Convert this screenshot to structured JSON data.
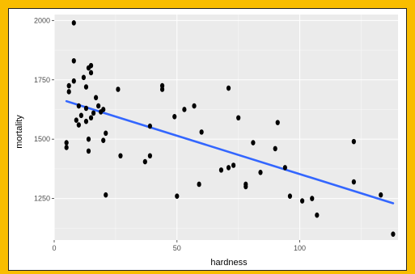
{
  "colors": {
    "frame": "#f9bd00",
    "panel": "#ebebeb",
    "grid_major": "#ffffff",
    "point": "#000000",
    "fit_line": "#3366ff"
  },
  "chart_data": {
    "type": "scatter",
    "title": "",
    "xlabel": "hardness",
    "ylabel": "mortality",
    "xlim": [
      0,
      140
    ],
    "ylim": [
      1075,
      2025
    ],
    "x_ticks": [
      0,
      50,
      100
    ],
    "y_ticks": [
      1250,
      1500,
      1750,
      2000
    ],
    "x_tick_labels": [
      "0",
      "50",
      "100"
    ],
    "y_tick_labels": [
      "1250",
      "1500",
      "1750",
      "2000"
    ],
    "grid": true,
    "legend": "none",
    "points": [
      {
        "x": 5,
        "y": 1465
      },
      {
        "x": 5,
        "y": 1485
      },
      {
        "x": 6,
        "y": 1700
      },
      {
        "x": 6,
        "y": 1725
      },
      {
        "x": 8,
        "y": 1990
      },
      {
        "x": 8,
        "y": 1830
      },
      {
        "x": 8,
        "y": 1745
      },
      {
        "x": 9,
        "y": 1580
      },
      {
        "x": 10,
        "y": 1640
      },
      {
        "x": 10,
        "y": 1560
      },
      {
        "x": 11,
        "y": 1600
      },
      {
        "x": 12,
        "y": 1760
      },
      {
        "x": 13,
        "y": 1720
      },
      {
        "x": 13,
        "y": 1630
      },
      {
        "x": 13,
        "y": 1575
      },
      {
        "x": 14,
        "y": 1800
      },
      {
        "x": 14,
        "y": 1500
      },
      {
        "x": 14,
        "y": 1450
      },
      {
        "x": 15,
        "y": 1810
      },
      {
        "x": 15,
        "y": 1780
      },
      {
        "x": 15,
        "y": 1590
      },
      {
        "x": 16,
        "y": 1610
      },
      {
        "x": 17,
        "y": 1675
      },
      {
        "x": 18,
        "y": 1640
      },
      {
        "x": 19,
        "y": 1615
      },
      {
        "x": 20,
        "y": 1625
      },
      {
        "x": 20,
        "y": 1495
      },
      {
        "x": 21,
        "y": 1525
      },
      {
        "x": 21,
        "y": 1265
      },
      {
        "x": 26,
        "y": 1710
      },
      {
        "x": 27,
        "y": 1430
      },
      {
        "x": 37,
        "y": 1405
      },
      {
        "x": 39,
        "y": 1430
      },
      {
        "x": 39,
        "y": 1555
      },
      {
        "x": 44,
        "y": 1725
      },
      {
        "x": 44,
        "y": 1710
      },
      {
        "x": 49,
        "y": 1595
      },
      {
        "x": 50,
        "y": 1260
      },
      {
        "x": 53,
        "y": 1625
      },
      {
        "x": 57,
        "y": 1640
      },
      {
        "x": 59,
        "y": 1310
      },
      {
        "x": 60,
        "y": 1530
      },
      {
        "x": 68,
        "y": 1370
      },
      {
        "x": 71,
        "y": 1715
      },
      {
        "x": 71,
        "y": 1380
      },
      {
        "x": 73,
        "y": 1390
      },
      {
        "x": 75,
        "y": 1590
      },
      {
        "x": 78,
        "y": 1310
      },
      {
        "x": 78,
        "y": 1300
      },
      {
        "x": 81,
        "y": 1485
      },
      {
        "x": 84,
        "y": 1360
      },
      {
        "x": 90,
        "y": 1460
      },
      {
        "x": 91,
        "y": 1570
      },
      {
        "x": 94,
        "y": 1380
      },
      {
        "x": 96,
        "y": 1260
      },
      {
        "x": 101,
        "y": 1240
      },
      {
        "x": 105,
        "y": 1250
      },
      {
        "x": 107,
        "y": 1180
      },
      {
        "x": 122,
        "y": 1490
      },
      {
        "x": 122,
        "y": 1320
      },
      {
        "x": 133,
        "y": 1265
      },
      {
        "x": 138,
        "y": 1100
      }
    ],
    "fit_line": {
      "x": [
        5,
        138
      ],
      "y": [
        1660,
        1230
      ]
    }
  }
}
